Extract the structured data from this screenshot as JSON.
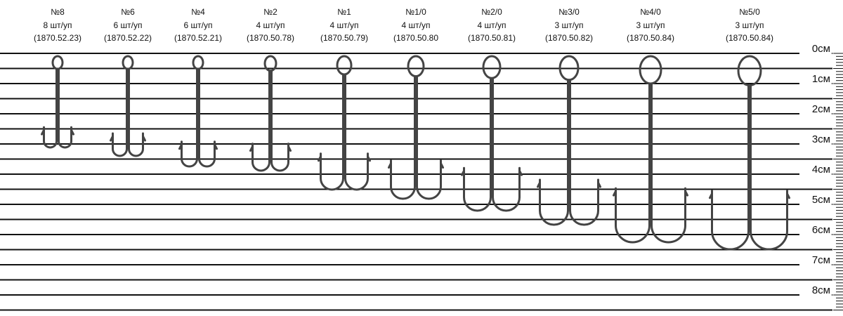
{
  "items": [
    {
      "size": "№8",
      "pack": "8 шт/уп",
      "code": "(1870.52.23)"
    },
    {
      "size": "№6",
      "pack": "6 шт/уп",
      "code": "(1870.52.22)"
    },
    {
      "size": "№4",
      "pack": "6 шт/уп",
      "code": "(1870.52.21)"
    },
    {
      "size": "№2",
      "pack": "4 шт/уп",
      "code": "(1870.50.78)"
    },
    {
      "size": "№1",
      "pack": "4 шт/уп",
      "code": "(1870.50.79)"
    },
    {
      "size": "№1/0",
      "pack": "4 шт/уп",
      "code": "(1870.50.80"
    },
    {
      "size": "№2/0",
      "pack": "4 шт/уп",
      "code": "(1870.50.81)"
    },
    {
      "size": "№3/0",
      "pack": "3 шт/уп",
      "code": "(1870.50.82)"
    },
    {
      "size": "№4/0",
      "pack": "3 шт/уп",
      "code": "(1870.50.84)"
    },
    {
      "size": "№5/0",
      "pack": "3 шт/уп",
      "code": "(1870.50.84)"
    }
  ],
  "ruler": {
    "labels": [
      "0см",
      "1см",
      "2см",
      "3см",
      "4см",
      "5см",
      "6см",
      "7см",
      "8см"
    ]
  }
}
